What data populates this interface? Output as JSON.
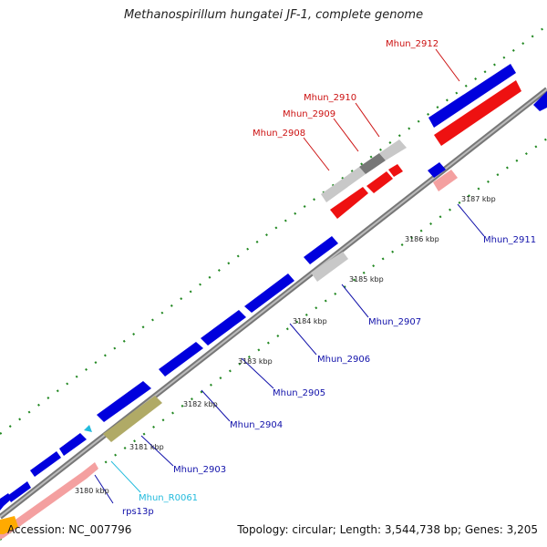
{
  "title": "Methanospirillum hungatei JF-1, complete genome",
  "footer": {
    "accession": "Accession: NC_007796",
    "summary": "Topology: circular; Length: 3,544,738 bp; Genes: 3,205"
  },
  "colors": {
    "forward_cds": "#0000dd",
    "reverse_cds": "#ee1111",
    "forward_label": "#1111aa",
    "reverse_label": "#cc1111",
    "pseudo_gene": "#c8c8c8",
    "rrna_gene": "#f4a0a0",
    "trna_gene": "#b0aa66",
    "rna_label": "#22bbdd",
    "backbone": "#888888",
    "tick": "#228822"
  },
  "scale_labels": [
    "3180 kbp",
    "3181 kbp",
    "3182 kbp",
    "3183 kbp",
    "3184 kbp",
    "3185 kbp",
    "3186 kbp",
    "3187 kbp"
  ],
  "gene_labels": [
    {
      "text": "rps13p",
      "strand": "forward"
    },
    {
      "text": "Mhun_R0061",
      "strand": "rna"
    },
    {
      "text": "Mhun_2903",
      "strand": "forward"
    },
    {
      "text": "Mhun_2904",
      "strand": "forward"
    },
    {
      "text": "Mhun_2905",
      "strand": "forward"
    },
    {
      "text": "Mhun_2906",
      "strand": "forward"
    },
    {
      "text": "Mhun_2907",
      "strand": "forward"
    },
    {
      "text": "Mhun_2908",
      "strand": "reverse"
    },
    {
      "text": "Mhun_2909",
      "strand": "reverse"
    },
    {
      "text": "Mhun_2910",
      "strand": "reverse"
    },
    {
      "text": "Mhun_2911",
      "strand": "forward"
    },
    {
      "text": "Mhun_2912",
      "strand": "reverse"
    }
  ]
}
